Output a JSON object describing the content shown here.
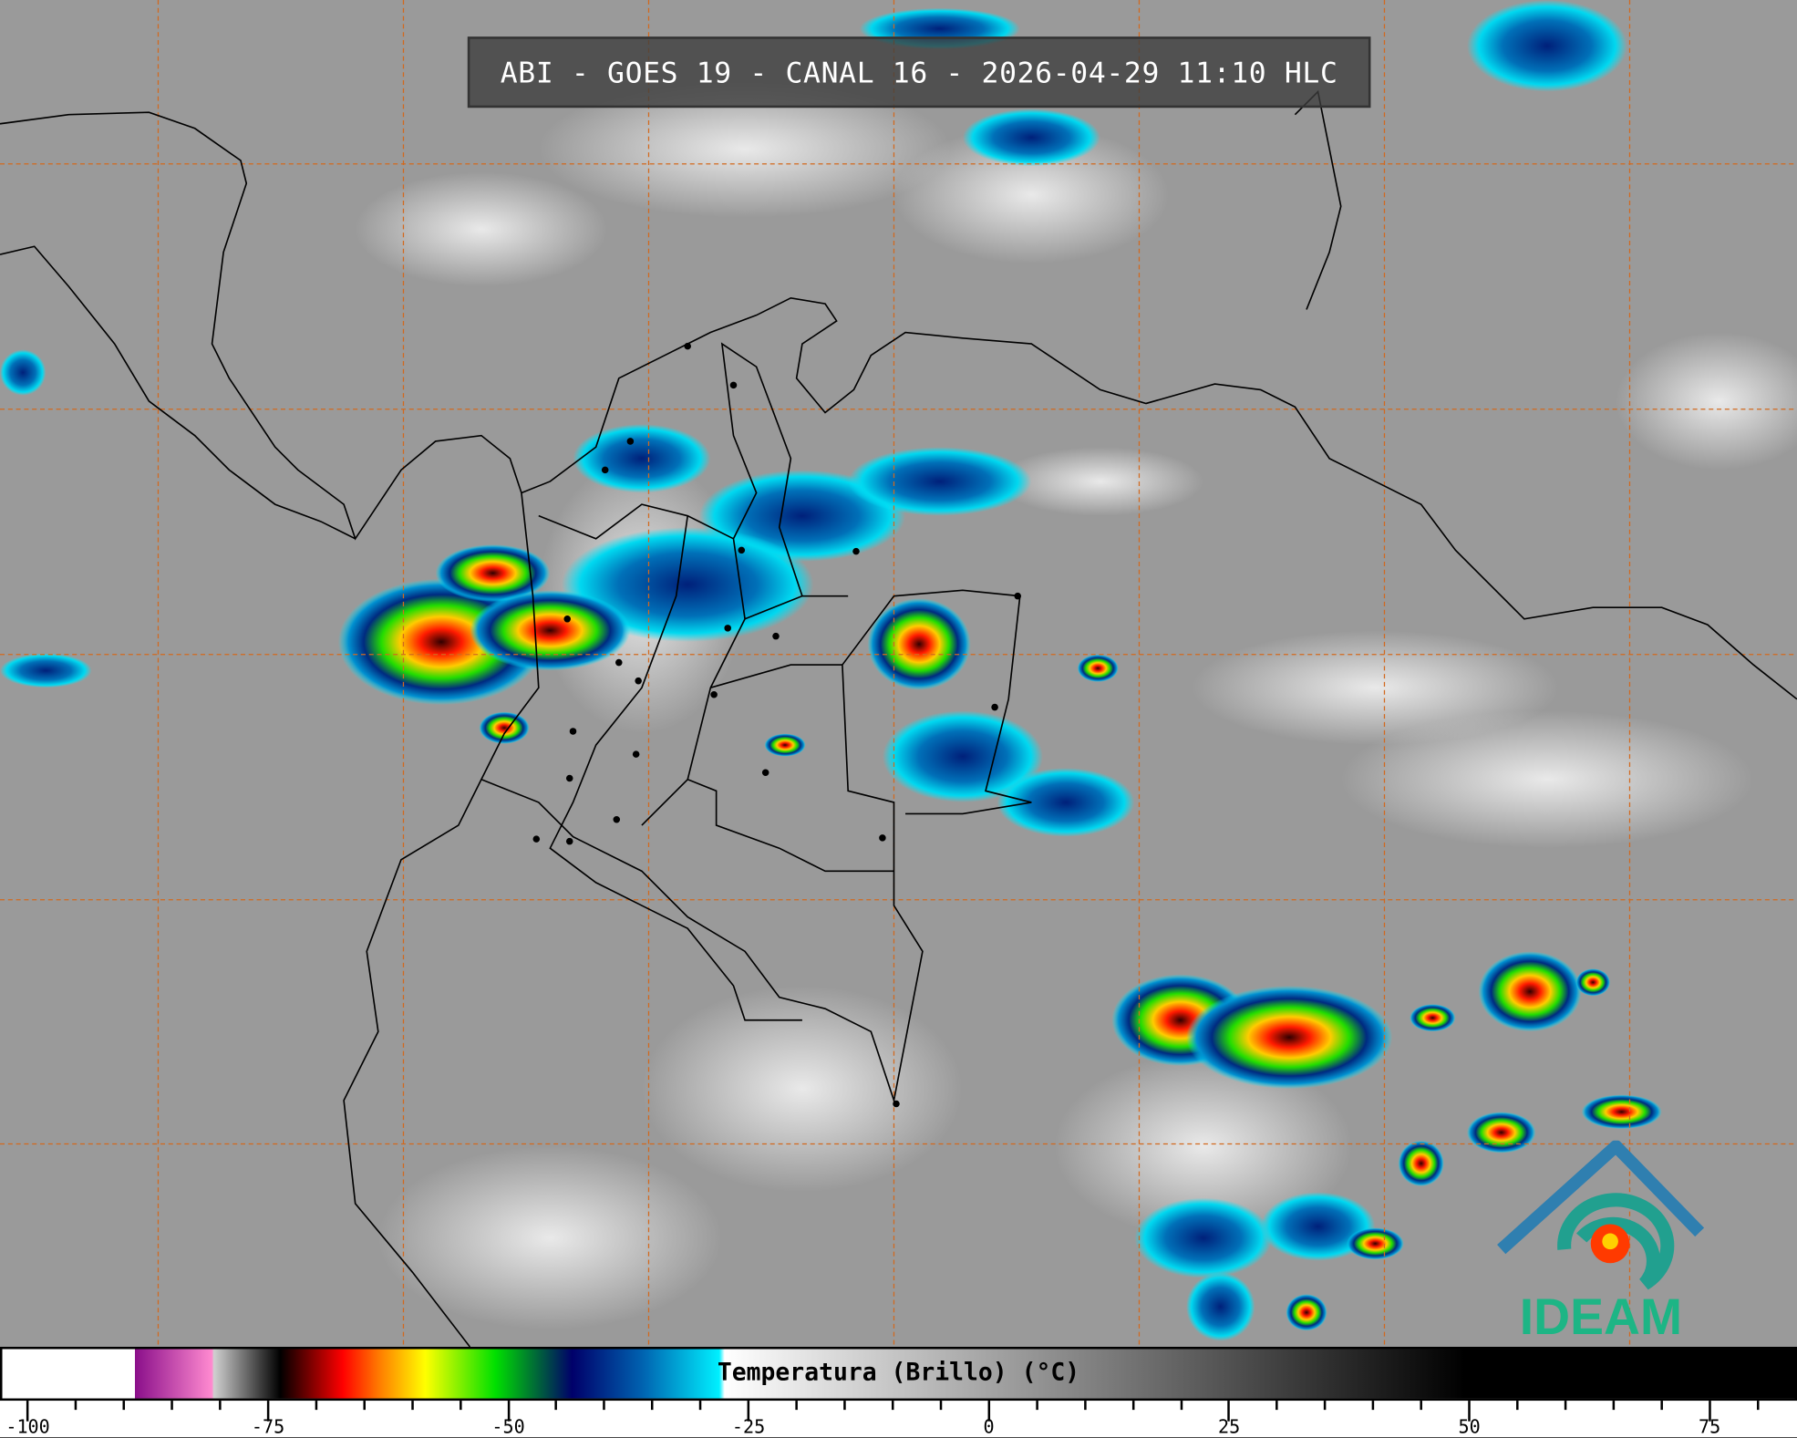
{
  "title": "ABI - GOES 19 - CANAL 16 - 2026-04-29 11:10 HLC",
  "logo": {
    "text": "IDEAM",
    "color": "#1db585",
    "roof_color": "#2f7fb0"
  },
  "map": {
    "background_color": "#9a9a9a",
    "gridline_color": "#d2691e",
    "coastline_color": "#000000"
  },
  "colorbar": {
    "label": "Temperatura (Brillo) (°C)",
    "range": [
      -102.9,
      84.1
    ],
    "major_ticks": [
      -100,
      -75,
      -50,
      -25,
      0,
      25,
      50,
      75
    ],
    "minor_step": 5,
    "colors": {
      "cold_purple": "#8a0f8a",
      "pink": "#ff8ad0",
      "red": "#ff0000",
      "yellow": "#ffff00",
      "green": "#00e000",
      "navy": "#00006a",
      "cyan": "#00f0ff"
    }
  }
}
